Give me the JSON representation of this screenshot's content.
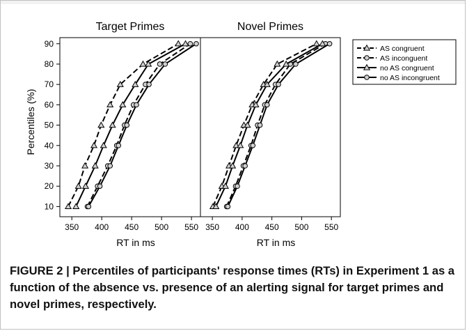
{
  "caption": "FIGURE 2 | Percentiles of participants' response times (RTs) in Experiment 1 as a function of the absence vs. presence of an alerting signal for target primes and novel primes, respectively.",
  "ylabel": "Percentiles (%)",
  "xlabel": "RT in ms",
  "chart_data": [
    {
      "type": "line",
      "title": "Target Primes",
      "xlabel": "RT in ms",
      "ylabel": "Percentiles (%)",
      "xticks": [
        350,
        400,
        450,
        500,
        550
      ],
      "yticks": [
        10,
        20,
        30,
        40,
        50,
        60,
        70,
        80,
        90
      ],
      "xlim": [
        330,
        565
      ],
      "ylim": [
        5,
        93
      ],
      "series": [
        {
          "name": "AS congruent",
          "marker": "triangle",
          "dash": true,
          "points": [
            [
              344,
              10
            ],
            [
              361,
              20
            ],
            [
              372,
              30
            ],
            [
              387,
              40
            ],
            [
              399,
              50
            ],
            [
              414,
              60
            ],
            [
              431,
              70
            ],
            [
              469,
              80
            ],
            [
              528,
              90
            ]
          ]
        },
        {
          "name": "AS inconguent",
          "marker": "circle",
          "dash": true,
          "points": [
            [
              376,
              10
            ],
            [
              393,
              20
            ],
            [
              410,
              30
            ],
            [
              425,
              40
            ],
            [
              438,
              50
            ],
            [
              453,
              60
            ],
            [
              473,
              70
            ],
            [
              497,
              80
            ],
            [
              548,
              90
            ]
          ]
        },
        {
          "name": "no AS congruent",
          "marker": "triangle",
          "dash": false,
          "points": [
            [
              357,
              10
            ],
            [
              373,
              20
            ],
            [
              389,
              30
            ],
            [
              403,
              40
            ],
            [
              418,
              50
            ],
            [
              435,
              60
            ],
            [
              456,
              70
            ],
            [
              478,
              80
            ],
            [
              540,
              90
            ]
          ]
        },
        {
          "name": "no AS incongruent",
          "marker": "circle",
          "dash": false,
          "points": [
            [
              378,
              10
            ],
            [
              397,
              20
            ],
            [
              414,
              30
            ],
            [
              428,
              40
            ],
            [
              442,
              50
            ],
            [
              458,
              60
            ],
            [
              479,
              70
            ],
            [
              506,
              80
            ],
            [
              558,
              90
            ]
          ]
        }
      ]
    },
    {
      "type": "line",
      "title": "Novel Primes",
      "xlabel": "RT in ms",
      "ylabel": "",
      "xticks": [
        350,
        400,
        450,
        500,
        550
      ],
      "yticks": [
        10,
        20,
        30,
        40,
        50,
        60,
        70,
        80,
        90
      ],
      "xlim": [
        330,
        565
      ],
      "ylim": [
        5,
        93
      ],
      "series": [
        {
          "name": "AS congruent",
          "marker": "triangle",
          "dash": true,
          "points": [
            [
              351,
              10
            ],
            [
              366,
              20
            ],
            [
              378,
              30
            ],
            [
              390,
              40
            ],
            [
              403,
              50
            ],
            [
              417,
              60
            ],
            [
              436,
              70
            ],
            [
              459,
              80
            ],
            [
              525,
              90
            ]
          ]
        },
        {
          "name": "AS inconguent",
          "marker": "circle",
          "dash": true,
          "points": [
            [
              374,
              10
            ],
            [
              389,
              20
            ],
            [
              402,
              30
            ],
            [
              415,
              40
            ],
            [
              426,
              50
            ],
            [
              438,
              60
            ],
            [
              456,
              70
            ],
            [
              481,
              80
            ],
            [
              540,
              90
            ]
          ]
        },
        {
          "name": "no AS congruent",
          "marker": "triangle",
          "dash": false,
          "points": [
            [
              356,
              10
            ],
            [
              372,
              20
            ],
            [
              384,
              30
            ],
            [
              397,
              40
            ],
            [
              409,
              50
            ],
            [
              423,
              60
            ],
            [
              442,
              70
            ],
            [
              474,
              80
            ],
            [
              535,
              90
            ]
          ]
        },
        {
          "name": "no AS incongruent",
          "marker": "circle",
          "dash": false,
          "points": [
            [
              376,
              10
            ],
            [
              392,
              20
            ],
            [
              405,
              30
            ],
            [
              418,
              40
            ],
            [
              430,
              50
            ],
            [
              442,
              60
            ],
            [
              461,
              70
            ],
            [
              490,
              80
            ],
            [
              547,
              90
            ]
          ]
        }
      ]
    }
  ],
  "legend": [
    {
      "label": "AS congruent",
      "marker": "triangle",
      "dash": true
    },
    {
      "label": "AS inconguent",
      "marker": "circle",
      "dash": true
    },
    {
      "label": "no AS congruent",
      "marker": "triangle",
      "dash": false
    },
    {
      "label": "no AS incongruent",
      "marker": "circle",
      "dash": false
    }
  ],
  "colors": {
    "line": "#000000",
    "marker_fill": "#d0d0d0",
    "frame": "#bfc0c2"
  }
}
